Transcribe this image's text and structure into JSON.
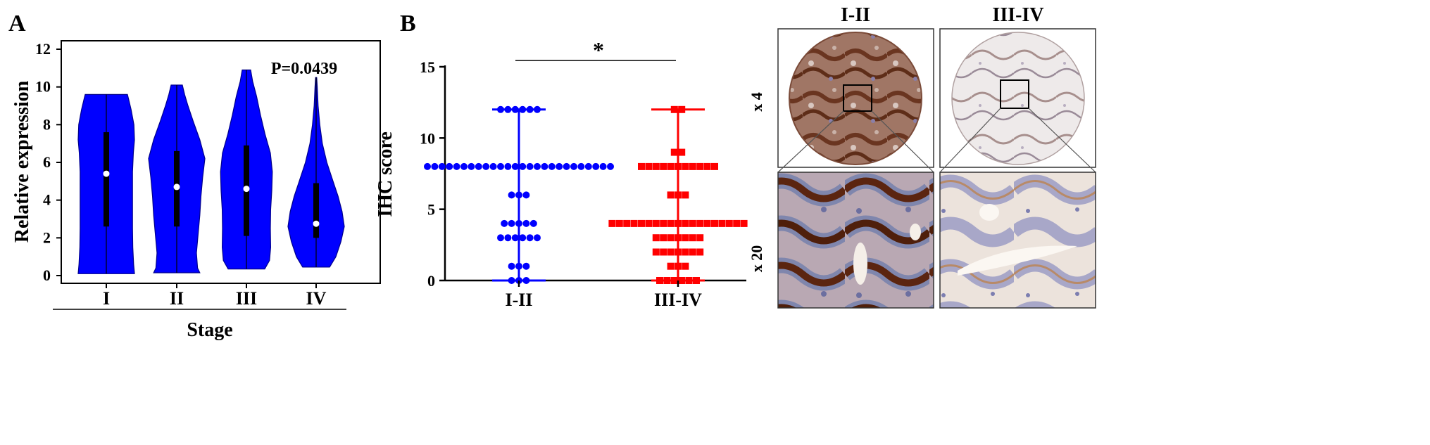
{
  "colors": {
    "violin_fill": "#0000ff",
    "group1": "#0000ff",
    "group2": "#ff0000",
    "axis": "#000000"
  },
  "chart_data": [
    {
      "panel": "A",
      "type": "violin",
      "xlabel": "Stage",
      "ylabel": "Relative expression",
      "ylim": [
        0,
        12
      ],
      "yticks": [
        "0",
        "2",
        "4",
        "6",
        "8",
        "10",
        "12"
      ],
      "categories": [
        "I",
        "II",
        "III",
        "IV"
      ],
      "annotation": "P=0.0439",
      "grid": false,
      "violins": [
        {
          "category": "I",
          "median": 5.4,
          "q1": 2.6,
          "q3": 7.6,
          "min": 0.1,
          "max": 9.6,
          "shape": [
            [
              0.1,
              1.0
            ],
            [
              0.6,
              0.97
            ],
            [
              1.5,
              0.94
            ],
            [
              2.5,
              0.93
            ],
            [
              3.5,
              0.93
            ],
            [
              4.5,
              0.93
            ],
            [
              5.5,
              0.93
            ],
            [
              6.5,
              0.96
            ],
            [
              7.2,
              1.0
            ],
            [
              8.0,
              0.98
            ],
            [
              8.8,
              0.88
            ],
            [
              9.3,
              0.8
            ],
            [
              9.6,
              0.75
            ]
          ]
        },
        {
          "category": "II",
          "median": 4.7,
          "q1": 2.6,
          "q3": 6.6,
          "min": 0.15,
          "max": 10.1,
          "shape": [
            [
              0.15,
              0.82
            ],
            [
              0.4,
              0.74
            ],
            [
              1.2,
              0.7
            ],
            [
              2.2,
              0.76
            ],
            [
              3.2,
              0.82
            ],
            [
              4.2,
              0.86
            ],
            [
              5.2,
              0.92
            ],
            [
              6.2,
              1.0
            ],
            [
              7.2,
              0.82
            ],
            [
              8.2,
              0.58
            ],
            [
              9.0,
              0.4
            ],
            [
              9.6,
              0.28
            ],
            [
              10.1,
              0.2
            ]
          ]
        },
        {
          "category": "III",
          "median": 4.6,
          "q1": 2.1,
          "q3": 6.9,
          "min": 0.35,
          "max": 10.9,
          "shape": [
            [
              0.35,
              0.65
            ],
            [
              0.8,
              0.82
            ],
            [
              1.5,
              0.86
            ],
            [
              2.5,
              0.85
            ],
            [
              3.5,
              0.86
            ],
            [
              4.5,
              0.9
            ],
            [
              5.5,
              0.92
            ],
            [
              6.5,
              0.85
            ],
            [
              7.5,
              0.66
            ],
            [
              8.5,
              0.5
            ],
            [
              9.5,
              0.36
            ],
            [
              10.3,
              0.22
            ],
            [
              10.9,
              0.15
            ]
          ]
        },
        {
          "category": "IV",
          "median": 2.75,
          "q1": 2.0,
          "q3": 4.9,
          "min": 0.45,
          "max": 10.5,
          "shape": [
            [
              0.45,
              0.48
            ],
            [
              1.0,
              0.7
            ],
            [
              1.8,
              0.88
            ],
            [
              2.6,
              1.0
            ],
            [
              3.4,
              0.92
            ],
            [
              4.2,
              0.78
            ],
            [
              5.0,
              0.6
            ],
            [
              6.0,
              0.38
            ],
            [
              7.0,
              0.22
            ],
            [
              8.0,
              0.13
            ],
            [
              9.0,
              0.07
            ],
            [
              10.0,
              0.04
            ],
            [
              10.5,
              0.02
            ]
          ]
        }
      ]
    },
    {
      "panel": "B",
      "type": "scatter",
      "ylabel": "IHC score",
      "ylim": [
        0,
        15
      ],
      "yticks": [
        "0",
        "5",
        "10",
        "15"
      ],
      "categories": [
        "I-II",
        "III-IV"
      ],
      "significance": "*",
      "grid": false,
      "series": [
        {
          "category": "I-II",
          "marker": "circle",
          "max": 12,
          "min": 0,
          "rows": [
            {
              "y": 12,
              "count": 6
            },
            {
              "y": 8,
              "count": 26
            },
            {
              "y": 6,
              "count": 3
            },
            {
              "y": 4,
              "count": 5
            },
            {
              "y": 3,
              "count": 6
            },
            {
              "y": 1,
              "count": 3
            },
            {
              "y": 0,
              "count": 3
            }
          ]
        },
        {
          "category": "III-IV",
          "marker": "square",
          "max": 12,
          "min": 0,
          "rows": [
            {
              "y": 12,
              "count": 2
            },
            {
              "y": 9,
              "count": 2
            },
            {
              "y": 8,
              "count": 11
            },
            {
              "y": 6,
              "count": 3
            },
            {
              "y": 4,
              "count": 19
            },
            {
              "y": 3,
              "count": 7
            },
            {
              "y": 2,
              "count": 7
            },
            {
              "y": 1,
              "count": 3
            },
            {
              "y": 0,
              "count": 6
            }
          ]
        }
      ]
    }
  ],
  "ihc_images": {
    "column_headers": [
      "I-II",
      "III-IV"
    ],
    "row_labels": [
      "x 4",
      "x 20"
    ]
  }
}
